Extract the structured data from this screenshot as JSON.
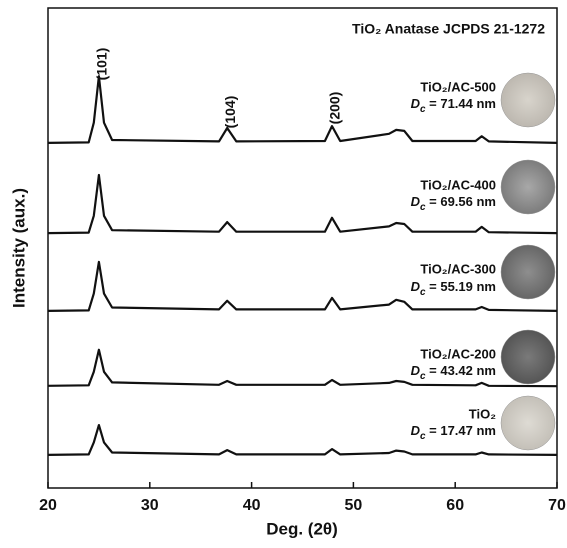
{
  "chart_data": {
    "type": "line",
    "title": "TiO₂ Anatase JCPDS 21-1272",
    "xlabel": "Deg. (2θ)",
    "ylabel": "Intensity (aux.)",
    "annotations": [
      "(101)",
      "(104)",
      "(200)"
    ],
    "x": [
      20,
      24,
      24.5,
      25,
      25.5,
      26.3,
      36.8,
      37.6,
      38.5,
      47.2,
      47.9,
      48.7,
      53.5,
      54.2,
      55,
      55.8,
      62,
      62.6,
      63.3,
      70
    ],
    "xlim": [
      20,
      70
    ],
    "xticks": [
      20,
      30,
      40,
      50,
      60,
      70
    ],
    "ylim": [
      0,
      100
    ],
    "series": [
      {
        "name": "TiO₂/AC-500",
        "size_label": "Dc = 71.44 nm",
        "color": "#111111",
        "values": [
          71.9,
          72.0,
          76.1,
          85.8,
          76.1,
          72.5,
          72.2,
          75.0,
          72.2,
          72.3,
          75.4,
          72.3,
          73.8,
          74.6,
          74.4,
          72.3,
          72.3,
          73.3,
          72.2,
          71.9
        ]
      },
      {
        "name": "TiO₂/AC-400",
        "size_label": "Dc = 69.56 nm",
        "color": "#111111",
        "values": [
          53.1,
          53.2,
          56.7,
          65.2,
          56.7,
          53.7,
          53.4,
          55.4,
          53.4,
          53.4,
          56.3,
          53.4,
          54.5,
          55.2,
          55.0,
          53.4,
          53.4,
          54.4,
          53.3,
          53.1
        ]
      },
      {
        "name": "TiO₂/AC-300",
        "size_label": "Dc = 55.19 nm",
        "color": "#111111",
        "values": [
          36.9,
          37.0,
          40.5,
          47.1,
          40.5,
          37.6,
          37.2,
          39.0,
          37.2,
          37.2,
          39.6,
          37.2,
          38.2,
          39.2,
          38.8,
          37.2,
          37.2,
          37.7,
          37.1,
          36.9
        ]
      },
      {
        "name": "TiO₂/AC-200",
        "size_label": "Dc = 43.42 nm",
        "color": "#111111",
        "values": [
          21.3,
          21.4,
          24.2,
          28.8,
          24.2,
          22.0,
          21.5,
          22.3,
          21.5,
          21.5,
          22.5,
          21.5,
          21.9,
          22.3,
          22.1,
          21.5,
          21.4,
          21.9,
          21.3,
          21.2
        ]
      },
      {
        "name": "TiO₂",
        "size_label": "Dc = 17.47 nm",
        "color": "#111111",
        "values": [
          6.9,
          7.0,
          9.5,
          13.1,
          9.5,
          7.4,
          7.0,
          7.9,
          7.0,
          7.0,
          8.1,
          7.0,
          7.3,
          7.8,
          7.6,
          7.0,
          7.0,
          7.4,
          7.0,
          6.9
        ]
      }
    ]
  }
}
